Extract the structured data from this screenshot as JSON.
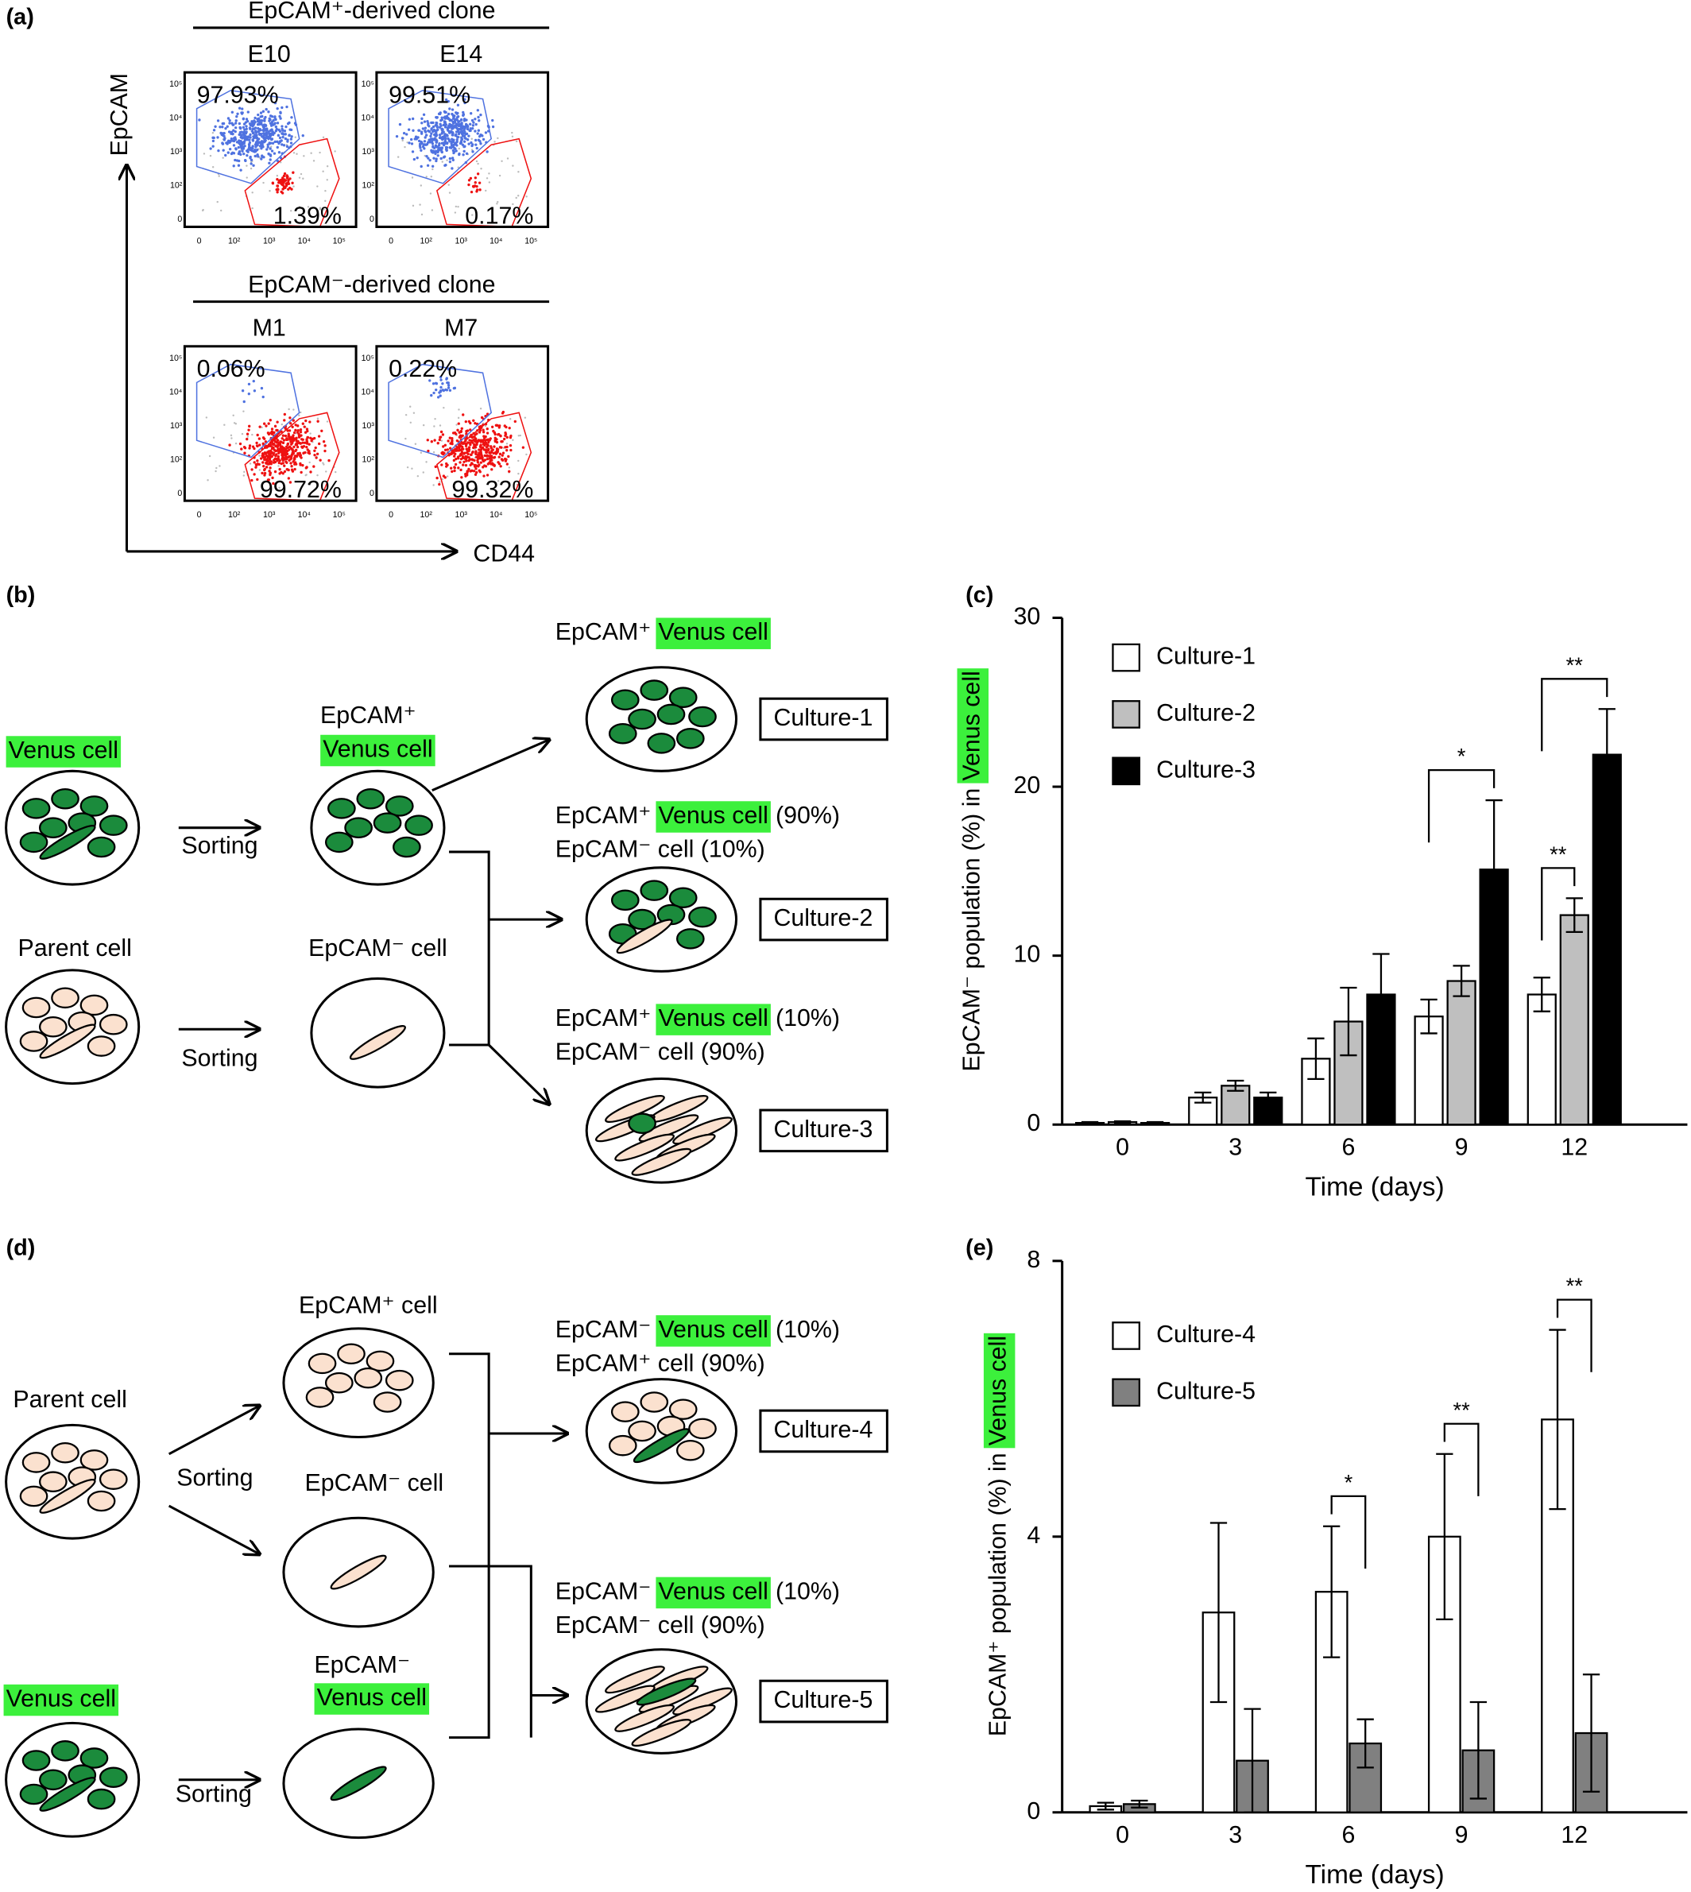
{
  "panel_a": {
    "label": "(a)",
    "y_axis": "EpCAM",
    "x_axis": "CD44",
    "axis_ticks": [
      "0",
      "10²",
      "10³",
      "10⁴",
      "10⁵"
    ],
    "groups": [
      {
        "title": "EpCAM⁺-derived clone",
        "plots": [
          {
            "name": "E10",
            "upper_gate": "97.93%",
            "lower_gate": "1.39%"
          },
          {
            "name": "E14",
            "upper_gate": "99.51%",
            "lower_gate": "0.17%"
          }
        ]
      },
      {
        "title": "EpCAM⁻-derived clone",
        "plots": [
          {
            "name": "M1",
            "upper_gate": "0.06%",
            "lower_gate": "99.72%"
          },
          {
            "name": "M7",
            "upper_gate": "0.22%",
            "lower_gate": "99.32%"
          }
        ]
      }
    ]
  },
  "panel_b": {
    "label": "(b)",
    "venus_cell": "Venus cell",
    "parent_cell": "Parent cell",
    "sorting": "Sorting",
    "sorted_pos": "EpCAM⁺",
    "sorted_neg": "EpCAM⁻ cell",
    "cultures": [
      {
        "name": "Culture-1",
        "line1": {
          "prefix": "EpCAM⁺",
          "highlight": "Venus cell"
        }
      },
      {
        "name": "Culture-2",
        "line1": {
          "prefix": "EpCAM⁺",
          "highlight": "Venus cell",
          "suffix": "(90%)"
        },
        "line2": "EpCAM⁻ cell (10%)"
      },
      {
        "name": "Culture-3",
        "line1": {
          "prefix": "EpCAM⁺",
          "highlight": "Venus cell",
          "suffix": "(10%)"
        },
        "line2": "EpCAM⁻ cell (90%)"
      }
    ]
  },
  "panel_d": {
    "label": "(d)",
    "venus_cell": "Venus cell",
    "parent_cell": "Parent cell",
    "sorting": "Sorting",
    "sorted_pos": "EpCAM⁺ cell",
    "sorted_neg": "EpCAM⁻ cell",
    "sorted_venus": "EpCAM⁻",
    "cultures": [
      {
        "name": "Culture-4",
        "line1": {
          "prefix": "EpCAM⁻",
          "highlight": "Venus cell",
          "suffix": "(10%)"
        },
        "line2": "EpCAM⁺ cell (90%)"
      },
      {
        "name": "Culture-5",
        "line1": {
          "prefix": "EpCAM⁻",
          "highlight": "Venus cell",
          "suffix": "(10%)"
        },
        "line2": "EpCAM⁻ cell (90%)"
      }
    ]
  },
  "chart_data": [
    {
      "type": "bar",
      "label": "(c)",
      "xlabel": "Time (days)",
      "ylabel": "EpCAM⁻ population (%) in",
      "ylabel_highlight": "Venus cell",
      "categories": [
        "0",
        "3",
        "6",
        "9",
        "12"
      ],
      "ylim": [
        0,
        30
      ],
      "yticks": [
        0,
        10,
        20,
        30
      ],
      "series": [
        {
          "name": "Culture-1",
          "color": "#ffffff",
          "values": [
            0.1,
            1.6,
            3.9,
            6.4,
            7.7
          ],
          "errors": [
            0.05,
            0.3,
            1.2,
            1.0,
            1.0
          ]
        },
        {
          "name": "Culture-2",
          "color": "#bfbfbf",
          "values": [
            0.15,
            2.3,
            6.1,
            8.5,
            12.4
          ],
          "errors": [
            0.05,
            0.3,
            2.0,
            0.9,
            1.0
          ]
        },
        {
          "name": "Culture-3",
          "color": "#000000",
          "values": [
            0.1,
            1.6,
            7.7,
            15.1,
            21.9
          ],
          "errors": [
            0.05,
            0.3,
            2.4,
            4.1,
            2.7
          ]
        }
      ],
      "annotations": [
        {
          "text": "*",
          "category": "9",
          "between": [
            "Culture-1",
            "Culture-3"
          ]
        },
        {
          "text": "**",
          "category": "12",
          "between": [
            "Culture-1",
            "Culture-2"
          ]
        },
        {
          "text": "**",
          "category": "12",
          "between": [
            "Culture-1",
            "Culture-3"
          ]
        }
      ]
    },
    {
      "type": "bar",
      "label": "(e)",
      "xlabel": "Time (days)",
      "ylabel": "EpCAM⁺ population (%) in",
      "ylabel_highlight": "Venus cell",
      "categories": [
        "0",
        "3",
        "6",
        "9",
        "12"
      ],
      "ylim": [
        0,
        8
      ],
      "yticks": [
        0,
        4,
        8
      ],
      "series": [
        {
          "name": "Culture-4",
          "color": "#ffffff",
          "values": [
            0.09,
            2.9,
            3.2,
            4.0,
            5.7
          ],
          "errors": [
            0.05,
            1.3,
            0.95,
            1.2,
            1.3
          ]
        },
        {
          "name": "Culture-5",
          "color": "#808080",
          "values": [
            0.12,
            0.75,
            1.0,
            0.9,
            1.15
          ],
          "errors": [
            0.05,
            0.75,
            0.35,
            0.7,
            0.85
          ]
        }
      ],
      "annotations": [
        {
          "text": "*",
          "category": "6",
          "between": [
            "Culture-4",
            "Culture-5"
          ]
        },
        {
          "text": "**",
          "category": "9",
          "between": [
            "Culture-4",
            "Culture-5"
          ]
        },
        {
          "text": "**",
          "category": "12",
          "between": [
            "Culture-4",
            "Culture-5"
          ]
        }
      ]
    }
  ]
}
